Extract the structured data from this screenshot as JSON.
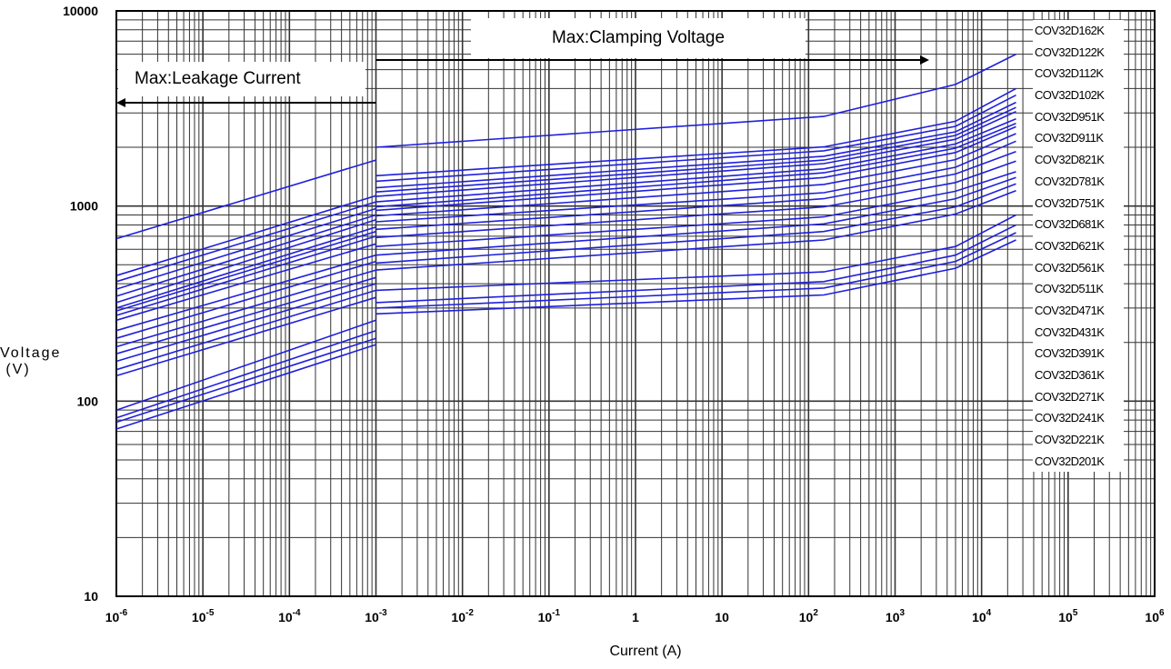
{
  "chart_data": {
    "type": "line",
    "title": "",
    "xlabel": "Current (A)",
    "ylabel": "Voltage (V)",
    "x_scale": "log",
    "y_scale": "log",
    "xlim": [
      1e-06,
      1000000.0
    ],
    "ylim": [
      10,
      10000
    ],
    "x_ticks": [
      {
        "base": "10",
        "exp": "-6"
      },
      {
        "base": "10",
        "exp": "-5"
      },
      {
        "base": "10",
        "exp": "-4"
      },
      {
        "base": "10",
        "exp": "-3"
      },
      {
        "base": "10",
        "exp": "-2"
      },
      {
        "base": "10",
        "exp": "-1"
      },
      {
        "base": "1",
        "exp": ""
      },
      {
        "base": "10",
        "exp": ""
      },
      {
        "base": "10",
        "exp": "2"
      },
      {
        "base": "10",
        "exp": "3"
      },
      {
        "base": "10",
        "exp": "4"
      },
      {
        "base": "10",
        "exp": "5"
      },
      {
        "base": "10",
        "exp": "6"
      }
    ],
    "y_ticks": [
      "10",
      "100",
      "1000",
      "10000"
    ],
    "grid": true,
    "line_color": "#1f1fdd",
    "annotations": {
      "leakage": "Max:Leakage Current",
      "clamping": "Max:Clamping Voltage"
    },
    "legend_position": "right",
    "series": [
      {
        "name": "COV32D162K",
        "leakage": [
          680,
          1720
        ],
        "clamping": [
          2000,
          2880,
          4200,
          6000
        ]
      },
      {
        "name": "COV32D122K",
        "leakage": [
          440,
          1130
        ],
        "clamping": [
          1430,
          2010,
          2720,
          4000
        ]
      },
      {
        "name": "COV32D112K",
        "leakage": [
          410,
          1050
        ],
        "clamping": [
          1340,
          1920,
          2560,
          3700
        ]
      },
      {
        "name": "COV32D102K",
        "leakage": [
          375,
          970
        ],
        "clamping": [
          1240,
          1800,
          2400,
          3400
        ]
      },
      {
        "name": "COV32D951K",
        "leakage": [
          345,
          900
        ],
        "clamping": [
          1180,
          1720,
          2300,
          3200
        ]
      },
      {
        "name": "COV32D911K",
        "leakage": [
          320,
          850
        ],
        "clamping": [
          1120,
          1650,
          2200,
          3050
        ]
      },
      {
        "name": "COV32D821K",
        "leakage": [
          300,
          780
        ],
        "clamping": [
          1050,
          1550,
          2080,
          2800
        ]
      },
      {
        "name": "COV32D781K",
        "leakage": [
          290,
          740
        ],
        "clamping": [
          990,
          1480,
          1980,
          2650
        ]
      },
      {
        "name": "COV32D751K",
        "leakage": [
          275,
          700
        ],
        "clamping": [
          950,
          1400,
          1880,
          2550
        ]
      },
      {
        "name": "COV32D681K",
        "leakage": [
          260,
          640
        ],
        "clamping": [
          890,
          1290,
          1730,
          2350
        ]
      },
      {
        "name": "COV32D621K",
        "leakage": [
          230,
          560
        ],
        "clamping": [
          830,
          1170,
          1580,
          2150
        ]
      },
      {
        "name": "COV32D561K",
        "leakage": [
          210,
          520
        ],
        "clamping": [
          760,
          1090,
          1460,
          1900
        ]
      },
      {
        "name": "COV32D511K",
        "leakage": [
          190,
          470
        ],
        "clamping": [
          690,
          990,
          1320,
          1700
        ]
      },
      {
        "name": "COV32D471K",
        "leakage": [
          175,
          430
        ],
        "clamping": [
          620,
          880,
          1190,
          1500
        ]
      },
      {
        "name": "COV32D431K",
        "leakage": [
          160,
          400
        ],
        "clamping": [
          560,
          810,
          1090,
          1400
        ]
      },
      {
        "name": "COV32D391K",
        "leakage": [
          145,
          370
        ],
        "clamping": [
          510,
          740,
          990,
          1300
        ]
      },
      {
        "name": "COV32D361K",
        "leakage": [
          135,
          340
        ],
        "clamping": [
          470,
          670,
          910,
          1200
        ]
      },
      {
        "name": "COV32D271K",
        "leakage": [
          90,
          260
        ],
        "clamping": [
          370,
          460,
          620,
          900
        ]
      },
      {
        "name": "COV32D241K",
        "leakage": [
          82,
          230
        ],
        "clamping": [
          320,
          410,
          560,
          800
        ]
      },
      {
        "name": "COV32D221K",
        "leakage": [
          78,
          210
        ],
        "clamping": [
          300,
          380,
          520,
          730
        ]
      },
      {
        "name": "COV32D201K",
        "leakage": [
          72,
          195
        ],
        "clamping": [
          280,
          350,
          480,
          670
        ]
      }
    ]
  }
}
